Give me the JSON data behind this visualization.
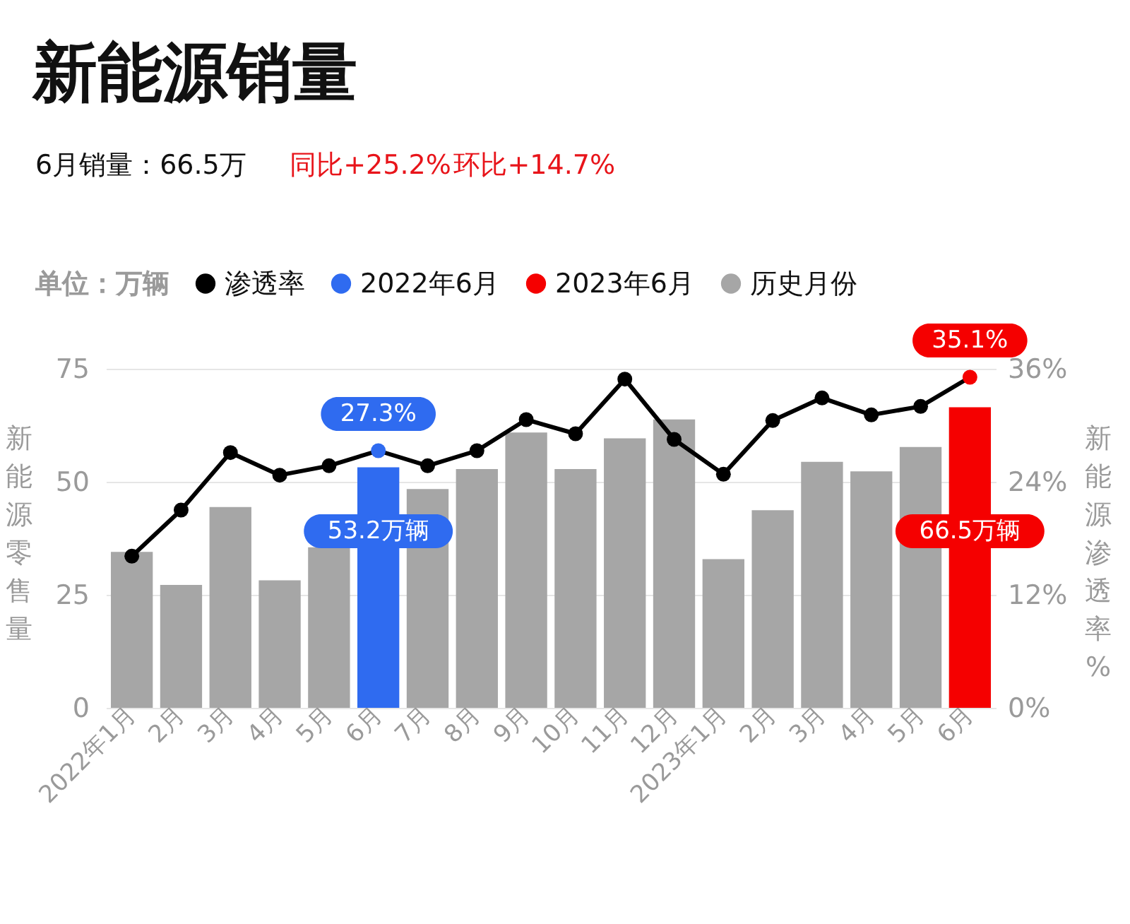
{
  "chart_data": {
    "type": "bar",
    "title": "新能源销量",
    "subtitle": "6月销量：66.5万",
    "annotations": [
      "同比+25.2%",
      "环比+14.7%"
    ],
    "ylabel": "新能源零售量",
    "y2label": "新能源渗透率%",
    "legend_title": "单位：万辆",
    "legend": "top left",
    "grid": "y",
    "categories": [
      "2022年1月",
      "2月",
      "3月",
      "4月",
      "5月",
      "6月",
      "7月",
      "8月",
      "9月",
      "10月",
      "11月",
      "12月",
      "2023年1月",
      "2月",
      "3月",
      "4月",
      "5月",
      "6月"
    ],
    "ylim": [
      0,
      75
    ],
    "yticks": [
      0,
      25,
      50,
      75
    ],
    "y2lim": [
      0,
      36
    ],
    "y2ticks": [
      {
        "value": 0,
        "label": "0%"
      },
      {
        "value": 12,
        "label": "12%"
      },
      {
        "value": 24,
        "label": "24%"
      },
      {
        "value": 36,
        "label": "36%"
      }
    ],
    "series": [
      {
        "name": "渗透率",
        "type": "line",
        "axis": "y2",
        "color": "#000000",
        "marker": "circle",
        "line_style": "solid",
        "values": [
          16.1,
          21.0,
          27.1,
          24.7,
          25.7,
          27.3,
          25.7,
          27.3,
          30.6,
          29.1,
          34.9,
          28.5,
          24.8,
          30.5,
          32.9,
          31.1,
          32.0,
          35.1
        ],
        "value_labels": [
          null,
          null,
          null,
          null,
          null,
          "27.3%",
          null,
          null,
          null,
          null,
          null,
          null,
          null,
          null,
          null,
          null,
          null,
          "35.1%"
        ]
      },
      {
        "name": "2022年6月",
        "color": "#2f6bf0",
        "values": [
          null,
          null,
          null,
          null,
          null,
          53.2,
          null,
          null,
          null,
          null,
          null,
          null,
          null,
          null,
          null,
          null,
          null,
          null
        ],
        "value_labels": [
          null,
          null,
          null,
          null,
          null,
          "53.2万辆",
          null,
          null,
          null,
          null,
          null,
          null,
          null,
          null,
          null,
          null,
          null,
          null
        ]
      },
      {
        "name": "2023年6月",
        "color": "#f50000",
        "values": [
          null,
          null,
          null,
          null,
          null,
          null,
          null,
          null,
          null,
          null,
          null,
          null,
          null,
          null,
          null,
          null,
          null,
          66.5
        ],
        "value_labels": [
          null,
          null,
          null,
          null,
          null,
          null,
          null,
          null,
          null,
          null,
          null,
          null,
          null,
          null,
          null,
          null,
          null,
          "66.5万辆"
        ]
      },
      {
        "name": "历史月份",
        "color": "#a6a6a6",
        "values": [
          34.5,
          27.2,
          44.4,
          28.2,
          35.5,
          null,
          48.4,
          52.8,
          60.9,
          52.8,
          59.6,
          63.8,
          32.9,
          43.7,
          54.4,
          52.3,
          57.7,
          null
        ]
      }
    ]
  }
}
